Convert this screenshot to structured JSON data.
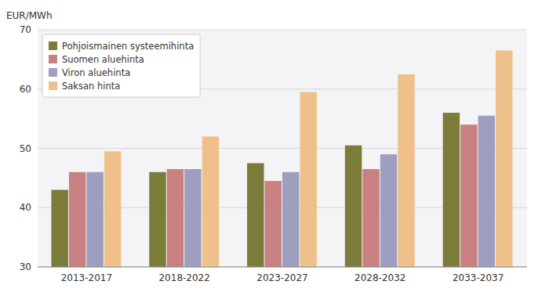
{
  "chart_data": {
    "type": "bar",
    "y_label": "EUR/MWh",
    "categories": [
      "2013-2017",
      "2018-2022",
      "2023-2027",
      "2028-2032",
      "2033-2037"
    ],
    "series": [
      {
        "name": "Pohjoismainen systeemihinta",
        "color": "#7B7B3A",
        "values": [
          43,
          46,
          47.5,
          50.5,
          56
        ]
      },
      {
        "name": "Suomen aluehinta",
        "color": "#C98080",
        "values": [
          46,
          46.5,
          44.5,
          46.5,
          54
        ]
      },
      {
        "name": "Viron aluehinta",
        "color": "#9E9EC0",
        "values": [
          46,
          46.5,
          46,
          49,
          55.5
        ]
      },
      {
        "name": "Saksan hinta",
        "color": "#F0C08A",
        "values": [
          49.5,
          52,
          59.5,
          62.5,
          66.5
        ]
      }
    ],
    "ylim": [
      30,
      70
    ],
    "yticks": [
      30,
      40,
      50,
      60,
      70
    ],
    "grid": true,
    "legend": "upper left"
  }
}
